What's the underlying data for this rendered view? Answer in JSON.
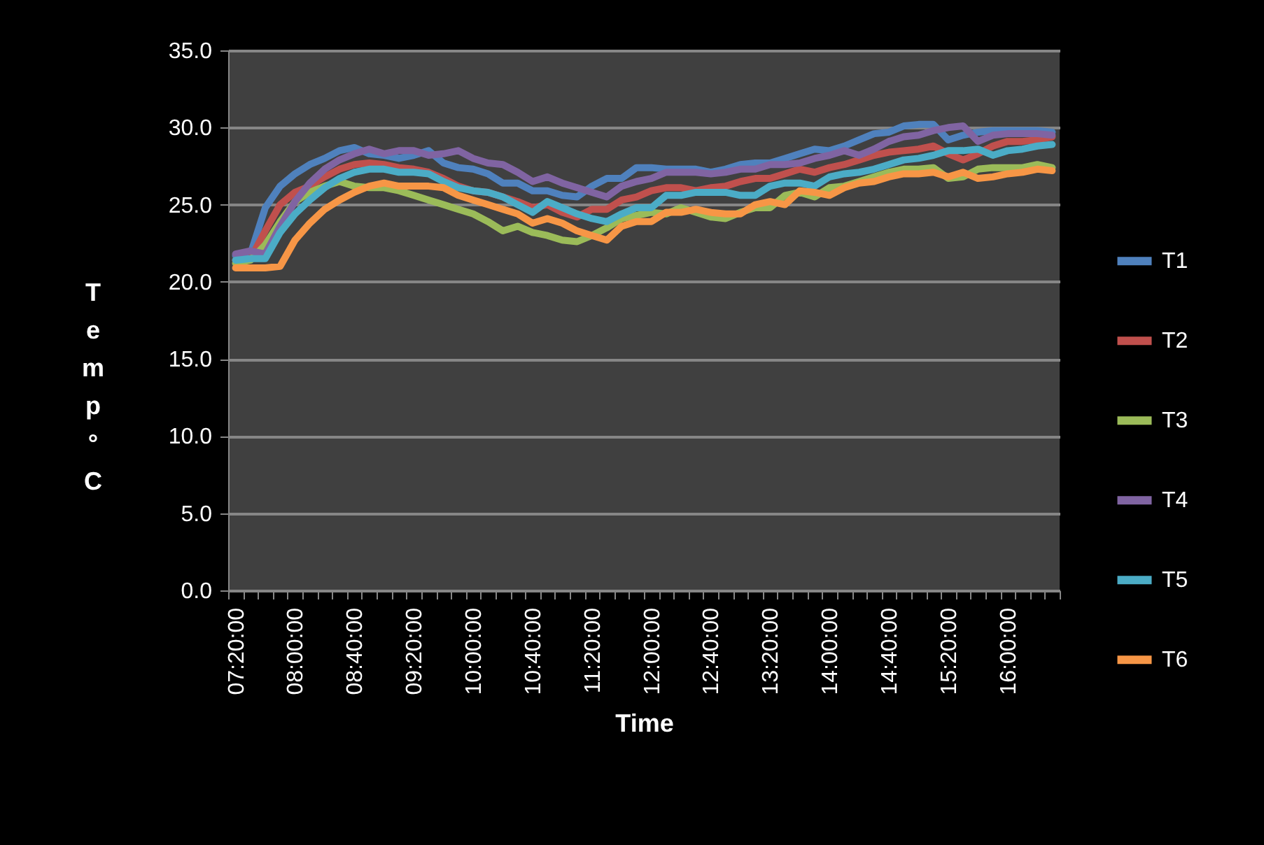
{
  "chart_data": {
    "type": "line",
    "xlabel": "Time",
    "ylabel": "Temp °C",
    "categories": [
      "07:20:00",
      null,
      null,
      null,
      "08:00:00",
      null,
      null,
      null,
      "08:40:00",
      null,
      null,
      null,
      "09:20:00",
      null,
      null,
      null,
      "10:00:00",
      null,
      null,
      null,
      "10:40:00",
      null,
      null,
      null,
      "11:20:00",
      null,
      null,
      null,
      "12:00:00",
      null,
      null,
      null,
      "12:40:00",
      null,
      null,
      null,
      "13:20:00",
      null,
      null,
      null,
      "14:00:00",
      null,
      null,
      null,
      "14:40:00",
      null,
      null,
      null,
      "15:20:00",
      null,
      null,
      null,
      "16:00:00",
      null,
      null,
      null
    ],
    "ylim": [
      0,
      35
    ],
    "yticks": [
      {
        "value": 0,
        "label": "0.0"
      },
      {
        "value": 5,
        "label": "5.0"
      },
      {
        "value": 10,
        "label": "10.0"
      },
      {
        "value": 15,
        "label": "15.0"
      },
      {
        "value": 20,
        "label": "20.0"
      },
      {
        "value": 25,
        "label": "25.0"
      },
      {
        "value": 30,
        "label": "30.0"
      },
      {
        "value": 35,
        "label": "35.0"
      }
    ],
    "grid": "y",
    "legend": "right",
    "marker": "none",
    "line_style": "solid",
    "series": [
      {
        "name": "T1",
        "color": "#4f81bd",
        "values": [
          21.7,
          21.8,
          24.8,
          26.2,
          27,
          27.6,
          28,
          28.5,
          28.7,
          28.3,
          28.2,
          28,
          28.2,
          28.5,
          27.7,
          27.4,
          27.3,
          27,
          26.4,
          26.4,
          25.9,
          25.9,
          25.6,
          25.5,
          26.2,
          26.7,
          26.7,
          27.4,
          27.4,
          27.3,
          27.3,
          27.3,
          27.1,
          27.3,
          27.6,
          27.7,
          27.7,
          28,
          28.3,
          28.6,
          28.5,
          28.8,
          29.2,
          29.6,
          29.7,
          30.1,
          30.2,
          30.2,
          29.2,
          29.5,
          29.7,
          29.8,
          29.8,
          29.8,
          29.8,
          29.7
        ]
      },
      {
        "name": "T2",
        "color": "#c0504d",
        "values": [
          21.4,
          21.5,
          23.3,
          25,
          25.8,
          26.2,
          26.8,
          27.3,
          27.6,
          27.7,
          27.6,
          27.4,
          27.3,
          27.1,
          26.7,
          26.2,
          25.9,
          25.8,
          25.5,
          25.2,
          24.8,
          25,
          24.5,
          24.2,
          24.7,
          24.7,
          25.3,
          25.5,
          25.9,
          26.1,
          26.1,
          25.9,
          26.1,
          26.2,
          26.5,
          26.7,
          26.7,
          27,
          27.3,
          27.1,
          27.4,
          27.6,
          27.9,
          28.2,
          28.4,
          28.5,
          28.6,
          28.8,
          28.3,
          27.9,
          28.3,
          28.8,
          29.1,
          29.1,
          29.2,
          29.4
        ]
      },
      {
        "name": "T3",
        "color": "#9bbb59",
        "values": [
          21.2,
          21.4,
          22.4,
          23.9,
          25.2,
          25.8,
          26.2,
          26.5,
          26.2,
          26.1,
          26.1,
          25.9,
          25.6,
          25.3,
          25,
          24.7,
          24.4,
          23.9,
          23.3,
          23.6,
          23.2,
          23,
          22.7,
          22.6,
          23,
          23.5,
          24.1,
          24.3,
          24.5,
          24.4,
          24.8,
          24.5,
          24.2,
          24.1,
          24.5,
          24.8,
          24.8,
          25.6,
          25.8,
          25.5,
          26.1,
          26.2,
          26.5,
          26.8,
          27.1,
          27.3,
          27.3,
          27.4,
          26.7,
          26.8,
          27.3,
          27.4,
          27.4,
          27.4,
          27.6,
          27.4
        ]
      },
      {
        "name": "T4",
        "color": "#8064a2",
        "values": [
          21.8,
          22,
          21.8,
          23.6,
          25.2,
          26.4,
          27.3,
          27.9,
          28.3,
          28.6,
          28.3,
          28.5,
          28.5,
          28.2,
          28.3,
          28.5,
          28,
          27.7,
          27.6,
          27.1,
          26.5,
          26.8,
          26.4,
          26.1,
          25.8,
          25.5,
          26.2,
          26.5,
          26.7,
          27.1,
          27.1,
          27.1,
          27,
          27.1,
          27.3,
          27.3,
          27.6,
          27.6,
          27.7,
          28,
          28.2,
          28.5,
          28.2,
          28.6,
          29.1,
          29.4,
          29.5,
          29.8,
          30,
          30.1,
          29.1,
          29.5,
          29.6,
          29.6,
          29.6,
          29.5
        ]
      },
      {
        "name": "T5",
        "color": "#4bacc6",
        "values": [
          21.4,
          21.5,
          21.5,
          23.2,
          24.4,
          25.3,
          26.1,
          26.7,
          27.1,
          27.3,
          27.3,
          27.1,
          27.1,
          27,
          26.5,
          26.1,
          25.9,
          25.8,
          25.5,
          25,
          24.5,
          25.2,
          24.8,
          24.4,
          24.1,
          23.9,
          24.4,
          24.8,
          24.8,
          25.6,
          25.6,
          25.8,
          25.8,
          25.8,
          25.6,
          25.6,
          26.2,
          26.4,
          26.4,
          26.2,
          26.8,
          27,
          27.1,
          27.3,
          27.6,
          27.9,
          28,
          28.2,
          28.5,
          28.5,
          28.6,
          28.2,
          28.5,
          28.6,
          28.8,
          28.9
        ]
      },
      {
        "name": "T6",
        "color": "#f79646",
        "values": [
          20.9,
          20.9,
          20.9,
          21,
          22.7,
          23.8,
          24.7,
          25.3,
          25.8,
          26.2,
          26.4,
          26.2,
          26.2,
          26.2,
          26.1,
          25.6,
          25.3,
          25,
          24.7,
          24.4,
          23.8,
          24.1,
          23.8,
          23.3,
          23,
          22.7,
          23.6,
          23.9,
          23.9,
          24.5,
          24.5,
          24.7,
          24.5,
          24.4,
          24.4,
          25,
          25.2,
          25,
          25.9,
          25.8,
          25.6,
          26.1,
          26.4,
          26.5,
          26.8,
          27,
          27,
          27.1,
          26.8,
          27.1,
          26.7,
          26.8,
          27,
          27.1,
          27.3,
          27.2
        ]
      }
    ]
  }
}
